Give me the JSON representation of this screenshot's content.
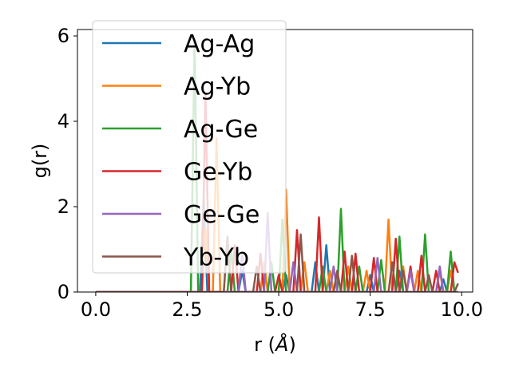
{
  "chart_data": {
    "type": "line",
    "xlabel": "r (",
    "xlabel_unit": "Å",
    "xlabel_close": ")",
    "ylabel": "g(r)",
    "xlim": [
      -0.5,
      10.3
    ],
    "ylim": [
      0,
      6.15
    ],
    "xticks": [
      0.0,
      2.5,
      5.0,
      7.5,
      10.0
    ],
    "xtick_labels": [
      "0.0",
      "2.5",
      "5.0",
      "7.5",
      "10.0"
    ],
    "yticks": [
      0,
      2,
      4,
      6
    ],
    "ytick_labels": [
      "0",
      "2",
      "4",
      "6"
    ],
    "legend_position": "upper-left",
    "series": [
      {
        "name": "Ag-Ag",
        "color": "#1f77b4",
        "points": [
          [
            0,
            0
          ],
          [
            2.5,
            0
          ],
          [
            2.85,
            0
          ],
          [
            2.95,
            2.2
          ],
          [
            3.05,
            0
          ],
          [
            3.9,
            0
          ],
          [
            4.0,
            0.5
          ],
          [
            4.1,
            0
          ],
          [
            5.1,
            0
          ],
          [
            5.2,
            0.4
          ],
          [
            5.3,
            0
          ],
          [
            5.9,
            0
          ],
          [
            6.0,
            0.7
          ],
          [
            6.1,
            0
          ],
          [
            6.2,
            0
          ],
          [
            6.3,
            1.1
          ],
          [
            6.4,
            0
          ],
          [
            7.4,
            0
          ],
          [
            7.5,
            0.4
          ],
          [
            7.6,
            0
          ],
          [
            8.2,
            0
          ],
          [
            8.3,
            0.5
          ],
          [
            8.4,
            0
          ],
          [
            9.4,
            0
          ],
          [
            9.5,
            0.3
          ],
          [
            9.6,
            0
          ],
          [
            9.9,
            0
          ]
        ]
      },
      {
        "name": "Ag-Yb",
        "color": "#ff7f0e",
        "points": [
          [
            0,
            0
          ],
          [
            2.9,
            0
          ],
          [
            3.0,
            1.5
          ],
          [
            3.1,
            0
          ],
          [
            3.2,
            0
          ],
          [
            3.3,
            3.6
          ],
          [
            3.4,
            0
          ],
          [
            4.5,
            0
          ],
          [
            4.6,
            0.7
          ],
          [
            4.7,
            0
          ],
          [
            5.1,
            0
          ],
          [
            5.2,
            2.4
          ],
          [
            5.3,
            0
          ],
          [
            5.6,
            0
          ],
          [
            5.7,
            0.7
          ],
          [
            5.8,
            0
          ],
          [
            6.3,
            0
          ],
          [
            6.4,
            0.5
          ],
          [
            6.5,
            0
          ],
          [
            6.8,
            0
          ],
          [
            6.9,
            0.6
          ],
          [
            7.0,
            0
          ],
          [
            7.3,
            0
          ],
          [
            7.4,
            0.5
          ],
          [
            7.5,
            0
          ],
          [
            7.9,
            0
          ],
          [
            8.0,
            1.7
          ],
          [
            8.1,
            0
          ],
          [
            8.3,
            0
          ],
          [
            8.4,
            0.6
          ],
          [
            8.5,
            0
          ],
          [
            8.7,
            0
          ],
          [
            8.8,
            0.5
          ],
          [
            8.9,
            0
          ],
          [
            9.3,
            0
          ],
          [
            9.4,
            0.5
          ],
          [
            9.5,
            0
          ],
          [
            9.6,
            0
          ],
          [
            9.7,
            0.5
          ],
          [
            9.8,
            0
          ],
          [
            9.9,
            0
          ]
        ]
      },
      {
        "name": "Ag-Ge",
        "color": "#2ca02c",
        "points": [
          [
            0,
            0
          ],
          [
            2.6,
            0
          ],
          [
            2.7,
            5.9
          ],
          [
            2.8,
            0
          ],
          [
            3.6,
            0
          ],
          [
            3.7,
            1.0
          ],
          [
            3.8,
            0
          ],
          [
            4.7,
            0
          ],
          [
            4.8,
            0.7
          ],
          [
            4.9,
            0
          ],
          [
            5.0,
            0
          ],
          [
            5.1,
            1.7
          ],
          [
            5.2,
            0
          ],
          [
            6.1,
            0
          ],
          [
            6.2,
            0.6
          ],
          [
            6.3,
            0
          ],
          [
            6.6,
            0
          ],
          [
            6.7,
            1.95
          ],
          [
            6.8,
            0
          ],
          [
            7.1,
            0
          ],
          [
            7.2,
            0.6
          ],
          [
            7.3,
            0
          ],
          [
            7.7,
            0
          ],
          [
            7.8,
            0.75
          ],
          [
            7.9,
            0
          ],
          [
            8.2,
            0
          ],
          [
            8.3,
            1.3
          ],
          [
            8.4,
            0
          ],
          [
            8.9,
            0
          ],
          [
            9.0,
            1.35
          ],
          [
            9.1,
            0
          ],
          [
            9.6,
            0
          ],
          [
            9.7,
            0.95
          ],
          [
            9.8,
            0
          ],
          [
            9.9,
            0
          ]
        ]
      },
      {
        "name": "Ge-Yb",
        "color": "#d62728",
        "points": [
          [
            0,
            0
          ],
          [
            2.9,
            0
          ],
          [
            3.0,
            4.6
          ],
          [
            3.1,
            0
          ],
          [
            3.7,
            0
          ],
          [
            3.8,
            1.1
          ],
          [
            3.9,
            0
          ],
          [
            4.4,
            0
          ],
          [
            4.5,
            0.9
          ],
          [
            4.6,
            0
          ],
          [
            4.9,
            0
          ],
          [
            5.0,
            0.4
          ],
          [
            5.1,
            0
          ],
          [
            5.4,
            0
          ],
          [
            5.5,
            1.45
          ],
          [
            5.6,
            0
          ],
          [
            6.0,
            0
          ],
          [
            6.1,
            1.75
          ],
          [
            6.2,
            0
          ],
          [
            6.7,
            0
          ],
          [
            6.8,
            0.95
          ],
          [
            6.9,
            0
          ],
          [
            7.0,
            0
          ],
          [
            7.1,
            0.9
          ],
          [
            7.2,
            0
          ],
          [
            7.5,
            0
          ],
          [
            7.6,
            0.8
          ],
          [
            7.7,
            0
          ],
          [
            8.1,
            0
          ],
          [
            8.2,
            1.25
          ],
          [
            8.3,
            0
          ],
          [
            8.5,
            0
          ],
          [
            8.6,
            0.6
          ],
          [
            8.7,
            0
          ],
          [
            8.8,
            0
          ],
          [
            8.9,
            0.85
          ],
          [
            9.0,
            0
          ],
          [
            9.2,
            0
          ],
          [
            9.3,
            0.5
          ],
          [
            9.4,
            0
          ],
          [
            9.7,
            0
          ],
          [
            9.8,
            0.7
          ],
          [
            9.9,
            0.45
          ]
        ]
      },
      {
        "name": "Ge-Ge",
        "color": "#9467bd",
        "points": [
          [
            0,
            0
          ],
          [
            3.9,
            0
          ],
          [
            4.0,
            0.9
          ],
          [
            4.1,
            0
          ],
          [
            4.6,
            0
          ],
          [
            4.7,
            1.85
          ],
          [
            4.8,
            0
          ],
          [
            5.3,
            0
          ],
          [
            5.4,
            0.7
          ],
          [
            5.5,
            0
          ],
          [
            6.4,
            0
          ],
          [
            6.5,
            0.6
          ],
          [
            6.6,
            0
          ],
          [
            7.6,
            0
          ],
          [
            7.7,
            0.8
          ],
          [
            7.8,
            0
          ],
          [
            8.5,
            0
          ],
          [
            8.6,
            0.5
          ],
          [
            8.7,
            0
          ],
          [
            9.3,
            0
          ],
          [
            9.4,
            0.6
          ],
          [
            9.5,
            0
          ],
          [
            9.9,
            0
          ]
        ]
      },
      {
        "name": "Yb-Yb",
        "color": "#8c564b",
        "points": [
          [
            0,
            0
          ],
          [
            3.5,
            0
          ],
          [
            3.6,
            1.3
          ],
          [
            3.7,
            0
          ],
          [
            4.3,
            0
          ],
          [
            4.4,
            0.6
          ],
          [
            4.5,
            0
          ],
          [
            5.5,
            0
          ],
          [
            5.6,
            1.35
          ],
          [
            5.7,
            0
          ],
          [
            6.5,
            0
          ],
          [
            6.6,
            0.5
          ],
          [
            6.7,
            0
          ],
          [
            6.9,
            0
          ],
          [
            7.0,
            0.85
          ],
          [
            7.1,
            0
          ],
          [
            8.0,
            0
          ],
          [
            8.1,
            0.7
          ],
          [
            8.2,
            0
          ],
          [
            8.3,
            0
          ],
          [
            8.4,
            0.5
          ],
          [
            8.5,
            0
          ],
          [
            9.0,
            0
          ],
          [
            9.1,
            0.4
          ],
          [
            9.2,
            0
          ],
          [
            9.8,
            0
          ],
          [
            9.9,
            0.2
          ]
        ]
      }
    ]
  }
}
